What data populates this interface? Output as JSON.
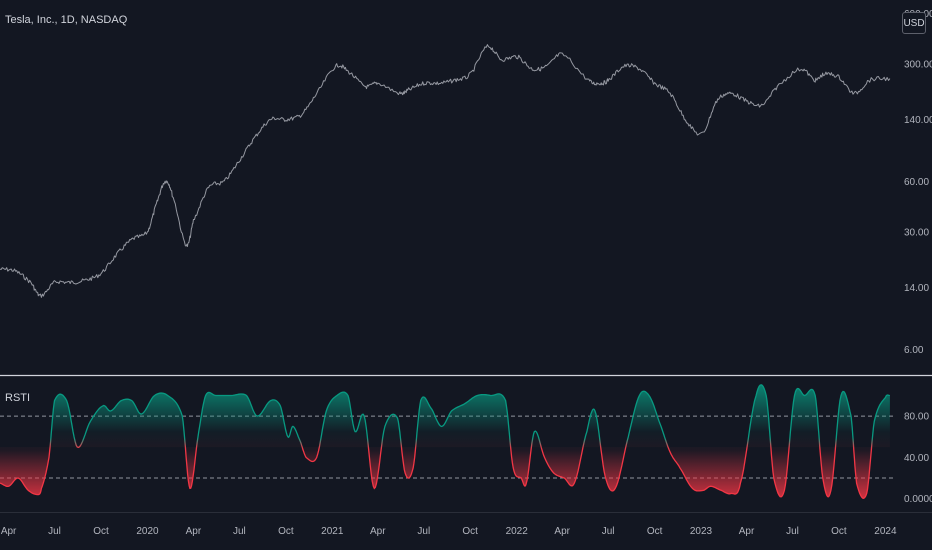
{
  "header": {
    "symbol_title": "Tesla, Inc., 1D, NASDAQ",
    "currency": "USD"
  },
  "colors": {
    "background": "#131722",
    "price_line": "#9598a1",
    "separator": "#d1d4dc",
    "bull_teal": "#089981",
    "bear_red": "#f23645",
    "threshold": "#b2b5be"
  },
  "chart_data": [
    {
      "type": "line",
      "title": "Tesla, Inc., 1D, NASDAQ",
      "scale": "log",
      "ylim": [
        4.4,
        700
      ],
      "y_ticks": [
        "600.00",
        "300.00",
        "140.00",
        "60.00",
        "30.00",
        "14.00",
        "6.00"
      ],
      "y_tick_values": [
        600,
        300,
        140,
        60,
        30,
        14,
        6
      ],
      "x_range": [
        "2019-03-15",
        "2024-01-20"
      ],
      "x": [
        "2019-03-15",
        "2019-04-15",
        "2019-05-15",
        "2019-06-03",
        "2019-07-01",
        "2019-08-01",
        "2019-09-01",
        "2019-10-01",
        "2019-11-01",
        "2019-12-01",
        "2020-01-01",
        "2020-01-20",
        "2020-02-05",
        "2020-02-19",
        "2020-03-18",
        "2020-04-01",
        "2020-05-01",
        "2020-06-01",
        "2020-07-01",
        "2020-08-01",
        "2020-09-01",
        "2020-10-01",
        "2020-11-01",
        "2020-12-01",
        "2021-01-08",
        "2021-02-01",
        "2021-03-08",
        "2021-04-01",
        "2021-05-15",
        "2021-06-01",
        "2021-07-01",
        "2021-08-01",
        "2021-09-01",
        "2021-10-01",
        "2021-11-04",
        "2021-12-01",
        "2022-01-03",
        "2022-02-01",
        "2022-03-01",
        "2022-04-01",
        "2022-05-24",
        "2022-06-15",
        "2022-07-01",
        "2022-08-01",
        "2022-09-01",
        "2022-10-01",
        "2022-11-01",
        "2022-12-01",
        "2023-01-03",
        "2023-02-01",
        "2023-03-01",
        "2023-04-01",
        "2023-05-01",
        "2023-06-01",
        "2023-07-18",
        "2023-08-15",
        "2023-09-01",
        "2023-10-01",
        "2023-10-31",
        "2023-12-01",
        "2024-01-10"
      ],
      "y": [
        18,
        17.5,
        15,
        12.5,
        15,
        15,
        15.5,
        17,
        22,
        27,
        30,
        45,
        60,
        50,
        25,
        35,
        55,
        60,
        80,
        110,
        140,
        140,
        150,
        200,
        290,
        270,
        220,
        230,
        200,
        210,
        230,
        230,
        240,
        260,
        380,
        320,
        330,
        280,
        290,
        340,
        240,
        230,
        240,
        290,
        280,
        230,
        200,
        140,
        115,
        180,
        200,
        180,
        170,
        220,
        280,
        240,
        260,
        250,
        200,
        240,
        245
      ]
    },
    {
      "type": "area",
      "title": "RSTI",
      "ylim": [
        -10,
        115
      ],
      "y_ticks": [
        "80.00",
        "40.00",
        "0.0000"
      ],
      "y_tick_values": [
        80,
        40,
        0
      ],
      "thresholds": [
        80,
        20
      ],
      "x_range": [
        "2019-03-15",
        "2024-01-20"
      ],
      "x": [
        "2019-03-15",
        "2019-04-01",
        "2019-04-20",
        "2019-05-10",
        "2019-05-30",
        "2019-06-05",
        "2019-06-20",
        "2019-07-01",
        "2019-07-25",
        "2019-08-15",
        "2019-09-10",
        "2019-10-05",
        "2019-10-20",
        "2019-11-10",
        "2019-12-01",
        "2019-12-20",
        "2020-01-15",
        "2020-02-10",
        "2020-03-10",
        "2020-03-25",
        "2020-04-10",
        "2020-04-25",
        "2020-05-15",
        "2020-06-15",
        "2020-07-15",
        "2020-08-05",
        "2020-09-01",
        "2020-09-20",
        "2020-10-05",
        "2020-10-15",
        "2020-10-30",
        "2020-11-10",
        "2020-12-01",
        "2020-12-20",
        "2021-01-10",
        "2021-02-01",
        "2021-02-15",
        "2021-03-05",
        "2021-03-25",
        "2021-04-15",
        "2021-05-10",
        "2021-05-25",
        "2021-06-10",
        "2021-06-25",
        "2021-07-15",
        "2021-08-05",
        "2021-08-25",
        "2021-09-20",
        "2021-10-15",
        "2021-11-10",
        "2021-12-10",
        "2021-12-25",
        "2022-01-10",
        "2022-01-20",
        "2022-02-05",
        "2022-02-25",
        "2022-03-15",
        "2022-04-05",
        "2022-04-25",
        "2022-05-20",
        "2022-06-05",
        "2022-06-25",
        "2022-07-15",
        "2022-08-10",
        "2022-09-01",
        "2022-09-20",
        "2022-10-10",
        "2022-11-01",
        "2022-11-20",
        "2022-12-15",
        "2023-01-05",
        "2023-01-20",
        "2023-02-10",
        "2023-03-01",
        "2023-03-20",
        "2023-04-20",
        "2023-05-10",
        "2023-05-25",
        "2023-06-15",
        "2023-07-05",
        "2023-07-25",
        "2023-08-15",
        "2023-08-30",
        "2023-09-15",
        "2023-10-05",
        "2023-10-25",
        "2023-11-05",
        "2023-11-25",
        "2023-12-10",
        "2024-01-01",
        "2024-01-10"
      ],
      "y": [
        15,
        12,
        20,
        8,
        4,
        10,
        40,
        95,
        95,
        50,
        75,
        90,
        85,
        95,
        95,
        82,
        100,
        100,
        80,
        10,
        60,
        100,
        100,
        100,
        100,
        80,
        95,
        90,
        60,
        70,
        55,
        40,
        40,
        85,
        100,
        100,
        65,
        80,
        10,
        70,
        78,
        25,
        30,
        95,
        88,
        70,
        85,
        92,
        100,
        100,
        95,
        30,
        20,
        15,
        65,
        40,
        25,
        20,
        15,
        65,
        85,
        22,
        10,
        60,
        100,
        100,
        75,
        45,
        30,
        10,
        8,
        12,
        8,
        5,
        15,
        100,
        100,
        20,
        8,
        100,
        100,
        100,
        20,
        8,
        100,
        80,
        15,
        5,
        75,
        98,
        100
      ]
    }
  ],
  "x_axis": {
    "labels": [
      "Apr",
      "Jul",
      "Oct",
      "2020",
      "Apr",
      "Jul",
      "Oct",
      "2021",
      "Apr",
      "Jul",
      "Oct",
      "2022",
      "Apr",
      "Jul",
      "Oct",
      "2023",
      "Apr",
      "Jul",
      "Oct",
      "2024"
    ],
    "dates": [
      "2019-04-01",
      "2019-07-01",
      "2019-10-01",
      "2020-01-01",
      "2020-04-01",
      "2020-07-01",
      "2020-10-01",
      "2021-01-01",
      "2021-04-01",
      "2021-07-01",
      "2021-10-01",
      "2022-01-01",
      "2022-04-01",
      "2022-07-01",
      "2022-10-01",
      "2023-01-01",
      "2023-04-01",
      "2023-07-01",
      "2023-10-01",
      "2024-01-01"
    ]
  }
}
